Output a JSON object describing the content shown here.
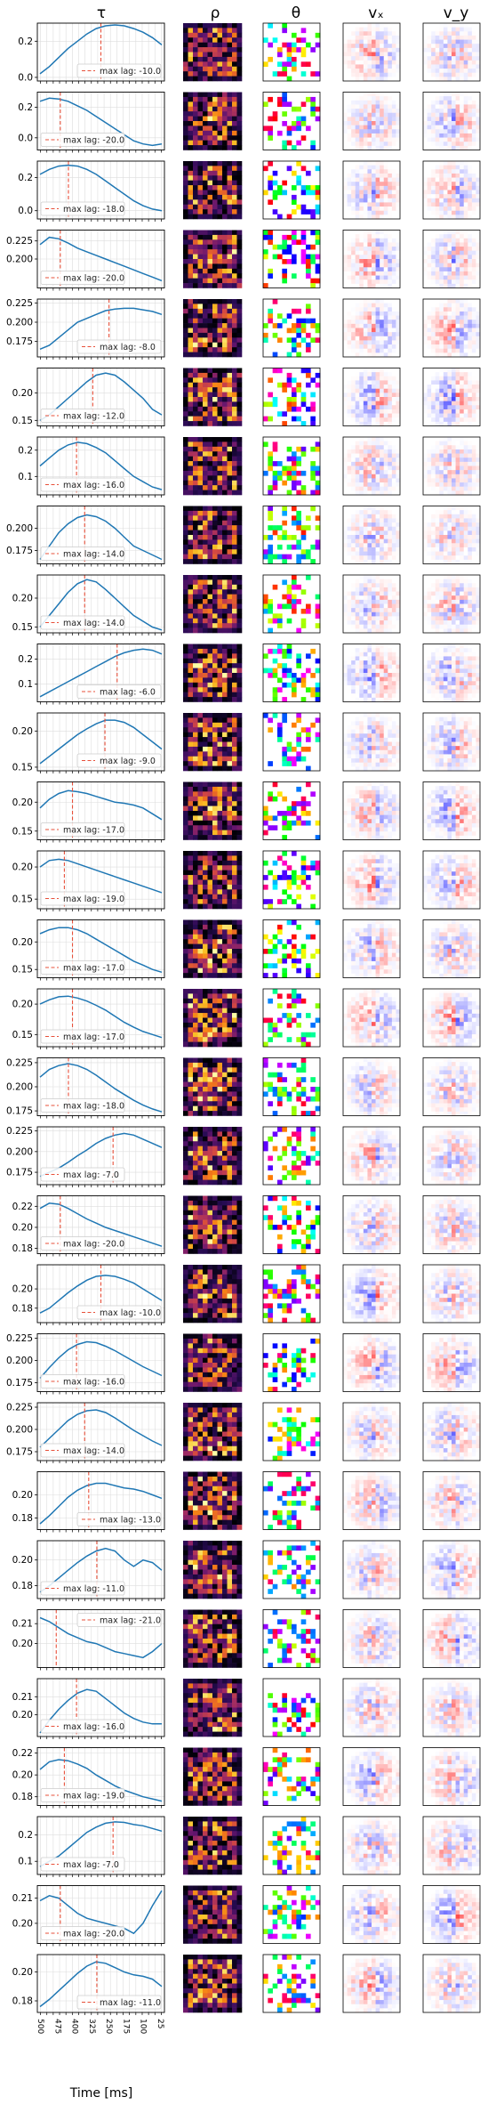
{
  "chart_data": {
    "type": "line",
    "column_titles": [
      "τ",
      "ρ",
      "θ",
      "vₓ",
      "v_y"
    ],
    "xlabel": "Time [ms]",
    "x_ticks": [
      "500",
      "475",
      "400",
      "325",
      "250",
      "175",
      "100",
      "25"
    ],
    "legend_prefix": "max lag: ",
    "colors": {
      "line": "#1f77b4",
      "lag_line": "#e8503a",
      "grid": "#dddddd"
    },
    "rows": [
      {
        "lag": -10.0,
        "yticks": [
          "0.0",
          "0.2"
        ],
        "ylim": [
          -0.02,
          0.3
        ],
        "legend": "lower-right",
        "values": [
          0.02,
          0.06,
          0.11,
          0.16,
          0.2,
          0.24,
          0.27,
          0.285,
          0.29,
          0.285,
          0.27,
          0.25,
          0.22,
          0.18
        ]
      },
      {
        "lag": -20.0,
        "yticks": [
          "0.0",
          "0.2"
        ],
        "ylim": [
          -0.08,
          0.3
        ],
        "legend": "lower-left",
        "values": [
          0.24,
          0.26,
          0.255,
          0.24,
          0.21,
          0.18,
          0.14,
          0.1,
          0.06,
          0.02,
          -0.02,
          -0.04,
          -0.05,
          -0.04
        ]
      },
      {
        "lag": -18.0,
        "yticks": [
          "0.0",
          "0.2"
        ],
        "ylim": [
          -0.05,
          0.3
        ],
        "legend": "lower-left",
        "values": [
          0.22,
          0.25,
          0.27,
          0.275,
          0.27,
          0.25,
          0.22,
          0.18,
          0.14,
          0.1,
          0.06,
          0.03,
          0.01,
          0.0
        ]
      },
      {
        "lag": -20.0,
        "yticks": [
          "0.200",
          "0.225"
        ],
        "ylim": [
          0.16,
          0.24
        ],
        "legend": "lower-left",
        "values": [
          0.22,
          0.23,
          0.228,
          0.222,
          0.215,
          0.21,
          0.205,
          0.2,
          0.195,
          0.19,
          0.185,
          0.18,
          0.175,
          0.17
        ]
      },
      {
        "lag": -8.0,
        "yticks": [
          "0.175",
          "0.200",
          "0.225"
        ],
        "ylim": [
          0.155,
          0.23
        ],
        "legend": "lower-right",
        "values": [
          0.165,
          0.17,
          0.18,
          0.19,
          0.2,
          0.205,
          0.21,
          0.215,
          0.217,
          0.218,
          0.218,
          0.216,
          0.214,
          0.21
        ]
      },
      {
        "lag": -12.0,
        "yticks": [
          "0.15",
          "0.20"
        ],
        "ylim": [
          0.14,
          0.245
        ],
        "legend": "lower-left",
        "values": [
          0.15,
          0.16,
          0.175,
          0.19,
          0.205,
          0.22,
          0.232,
          0.236,
          0.232,
          0.22,
          0.205,
          0.19,
          0.17,
          0.16
        ]
      },
      {
        "lag": -16.0,
        "yticks": [
          "0.1",
          "0.2"
        ],
        "ylim": [
          0.03,
          0.25
        ],
        "legend": "lower-left",
        "values": [
          0.14,
          0.17,
          0.2,
          0.22,
          0.23,
          0.225,
          0.21,
          0.19,
          0.16,
          0.13,
          0.1,
          0.08,
          0.06,
          0.05
        ]
      },
      {
        "lag": -14.0,
        "yticks": [
          "0.175",
          "0.200"
        ],
        "ylim": [
          0.16,
          0.225
        ],
        "legend": "lower-left",
        "values": [
          0.165,
          0.18,
          0.195,
          0.205,
          0.212,
          0.215,
          0.213,
          0.208,
          0.2,
          0.19,
          0.18,
          0.175,
          0.17,
          0.165
        ]
      },
      {
        "lag": -14.0,
        "yticks": [
          "0.15",
          "0.20"
        ],
        "ylim": [
          0.14,
          0.24
        ],
        "legend": "lower-left",
        "values": [
          0.15,
          0.17,
          0.19,
          0.21,
          0.225,
          0.232,
          0.228,
          0.215,
          0.2,
          0.185,
          0.17,
          0.16,
          0.15,
          0.145
        ]
      },
      {
        "lag": -6.0,
        "yticks": [
          "0.1",
          "0.2"
        ],
        "ylim": [
          0.03,
          0.26
        ],
        "legend": "lower-right",
        "values": [
          0.05,
          0.07,
          0.09,
          0.11,
          0.13,
          0.15,
          0.17,
          0.19,
          0.21,
          0.225,
          0.235,
          0.24,
          0.235,
          0.22
        ]
      },
      {
        "lag": -9.0,
        "yticks": [
          "0.15",
          "0.20"
        ],
        "ylim": [
          0.145,
          0.225
        ],
        "legend": "lower-right",
        "values": [
          0.155,
          0.165,
          0.175,
          0.185,
          0.195,
          0.203,
          0.21,
          0.215,
          0.215,
          0.212,
          0.205,
          0.195,
          0.185,
          0.175
        ]
      },
      {
        "lag": -17.0,
        "yticks": [
          "0.15",
          "0.20"
        ],
        "ylim": [
          0.135,
          0.235
        ],
        "legend": "lower-left",
        "values": [
          0.19,
          0.205,
          0.215,
          0.22,
          0.218,
          0.215,
          0.21,
          0.205,
          0.2,
          0.198,
          0.195,
          0.19,
          0.18,
          0.17
        ]
      },
      {
        "lag": -19.0,
        "yticks": [
          "0.15",
          "0.20"
        ],
        "ylim": [
          0.135,
          0.225
        ],
        "legend": "lower-left",
        "values": [
          0.2,
          0.21,
          0.212,
          0.21,
          0.205,
          0.2,
          0.195,
          0.19,
          0.185,
          0.18,
          0.175,
          0.17,
          0.165,
          0.16
        ]
      },
      {
        "lag": -17.0,
        "yticks": [
          "0.15",
          "0.20"
        ],
        "ylim": [
          0.135,
          0.24
        ],
        "legend": "lower-left",
        "values": [
          0.215,
          0.222,
          0.226,
          0.226,
          0.222,
          0.215,
          0.205,
          0.195,
          0.185,
          0.175,
          0.165,
          0.158,
          0.15,
          0.145
        ]
      },
      {
        "lag": -17.0,
        "yticks": [
          "0.15",
          "0.20"
        ],
        "ylim": [
          0.13,
          0.225
        ],
        "legend": "lower-left",
        "values": [
          0.2,
          0.207,
          0.212,
          0.213,
          0.21,
          0.205,
          0.198,
          0.19,
          0.18,
          0.17,
          0.162,
          0.155,
          0.15,
          0.145
        ]
      },
      {
        "lag": -18.0,
        "yticks": [
          "0.175",
          "0.200",
          "0.225"
        ],
        "ylim": [
          0.17,
          0.23
        ],
        "legend": "lower-left",
        "values": [
          0.21,
          0.218,
          0.222,
          0.224,
          0.222,
          0.218,
          0.212,
          0.205,
          0.198,
          0.192,
          0.186,
          0.181,
          0.177,
          0.174
        ]
      },
      {
        "lag": -7.0,
        "yticks": [
          "0.175",
          "0.200",
          "0.225"
        ],
        "ylim": [
          0.16,
          0.23
        ],
        "legend": "lower-left",
        "values": [
          0.17,
          0.175,
          0.18,
          0.187,
          0.195,
          0.202,
          0.21,
          0.216,
          0.22,
          0.222,
          0.22,
          0.215,
          0.21,
          0.205
        ]
      },
      {
        "lag": -20.0,
        "yticks": [
          "0.18",
          "0.20",
          "0.22"
        ],
        "ylim": [
          0.175,
          0.23
        ],
        "legend": "lower-left",
        "values": [
          0.218,
          0.223,
          0.222,
          0.218,
          0.213,
          0.208,
          0.204,
          0.2,
          0.197,
          0.194,
          0.191,
          0.188,
          0.185,
          0.182
        ]
      },
      {
        "lag": -10.0,
        "yticks": [
          "0.18",
          "0.20"
        ],
        "ylim": [
          0.165,
          0.225
        ],
        "legend": "lower-right",
        "values": [
          0.175,
          0.18,
          0.188,
          0.196,
          0.203,
          0.209,
          0.213,
          0.214,
          0.213,
          0.21,
          0.206,
          0.2,
          0.194,
          0.188
        ]
      },
      {
        "lag": -16.0,
        "yticks": [
          "0.175",
          "0.200",
          "0.225"
        ],
        "ylim": [
          0.165,
          0.23
        ],
        "legend": "lower-left",
        "values": [
          0.18,
          0.192,
          0.203,
          0.212,
          0.218,
          0.221,
          0.22,
          0.216,
          0.211,
          0.205,
          0.199,
          0.193,
          0.188,
          0.183
        ]
      },
      {
        "lag": -14.0,
        "yticks": [
          "0.175",
          "0.200",
          "0.225"
        ],
        "ylim": [
          0.165,
          0.23
        ],
        "legend": "lower-left",
        "values": [
          0.18,
          0.19,
          0.2,
          0.21,
          0.217,
          0.221,
          0.222,
          0.219,
          0.213,
          0.206,
          0.199,
          0.193,
          0.187,
          0.182
        ]
      },
      {
        "lag": -13.0,
        "yticks": [
          "0.18",
          "0.20"
        ],
        "ylim": [
          0.17,
          0.22
        ],
        "legend": "lower-right",
        "values": [
          0.175,
          0.182,
          0.19,
          0.198,
          0.204,
          0.208,
          0.21,
          0.21,
          0.208,
          0.206,
          0.205,
          0.203,
          0.2,
          0.197
        ]
      },
      {
        "lag": -11.0,
        "yticks": [
          "0.18",
          "0.20"
        ],
        "ylim": [
          0.17,
          0.215
        ],
        "legend": "lower-left",
        "values": [
          0.175,
          0.18,
          0.186,
          0.192,
          0.198,
          0.203,
          0.207,
          0.209,
          0.207,
          0.2,
          0.195,
          0.2,
          0.198,
          0.192
        ]
      },
      {
        "lag": -21.0,
        "yticks": [
          "0.20",
          "0.21"
        ],
        "ylim": [
          0.188,
          0.217
        ],
        "legend": "upper-right",
        "values": [
          0.213,
          0.211,
          0.208,
          0.205,
          0.203,
          0.201,
          0.2,
          0.198,
          0.196,
          0.195,
          0.194,
          0.193,
          0.196,
          0.2
        ]
      },
      {
        "lag": -16.0,
        "yticks": [
          "0.20",
          "0.21"
        ],
        "ylim": [
          0.188,
          0.22
        ],
        "legend": "lower-left",
        "values": [
          0.19,
          0.197,
          0.203,
          0.208,
          0.212,
          0.214,
          0.213,
          0.209,
          0.205,
          0.201,
          0.198,
          0.196,
          0.195,
          0.195
        ]
      },
      {
        "lag": -19.0,
        "yticks": [
          "0.18",
          "0.20",
          "0.22"
        ],
        "ylim": [
          0.172,
          0.225
        ],
        "legend": "lower-left",
        "values": [
          0.205,
          0.212,
          0.214,
          0.213,
          0.21,
          0.206,
          0.2,
          0.195,
          0.19,
          0.186,
          0.183,
          0.18,
          0.178,
          0.176
        ]
      },
      {
        "lag": -7.0,
        "yticks": [
          "0.1",
          "0.2"
        ],
        "ylim": [
          0.05,
          0.27
        ],
        "legend": "lower-left",
        "values": [
          0.08,
          0.1,
          0.12,
          0.15,
          0.18,
          0.21,
          0.23,
          0.245,
          0.25,
          0.248,
          0.24,
          0.235,
          0.225,
          0.215
        ]
      },
      {
        "lag": -20.0,
        "yticks": [
          "0.20",
          "0.21"
        ],
        "ylim": [
          0.192,
          0.215
        ],
        "legend": "lower-left",
        "values": [
          0.209,
          0.211,
          0.21,
          0.207,
          0.204,
          0.202,
          0.201,
          0.2,
          0.199,
          0.198,
          0.196,
          0.2,
          0.207,
          0.213
        ]
      },
      {
        "lag": -11.0,
        "yticks": [
          "0.18",
          "0.20"
        ],
        "ylim": [
          0.172,
          0.212
        ],
        "legend": "lower-right",
        "values": [
          0.176,
          0.181,
          0.187,
          0.193,
          0.199,
          0.204,
          0.207,
          0.206,
          0.203,
          0.2,
          0.198,
          0.197,
          0.195,
          0.19
        ]
      }
    ]
  }
}
